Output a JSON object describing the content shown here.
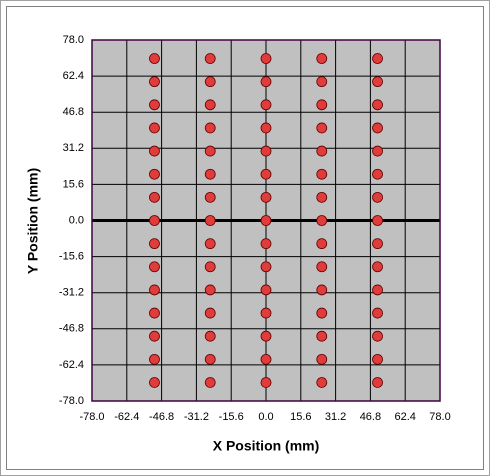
{
  "chart_data": {
    "type": "scatter",
    "xlabel": "X Position (mm)",
    "ylabel": "Y Position (mm)",
    "color": "#e03c3c",
    "x": [
      -50,
      -50,
      -50,
      -50,
      -50,
      -50,
      -50,
      -50,
      -50,
      -50,
      -50,
      -50,
      -50,
      -50,
      -50,
      -25,
      -25,
      -25,
      -25,
      -25,
      -25,
      -25,
      -25,
      -25,
      -25,
      -25,
      -25,
      -25,
      -25,
      -25,
      0,
      0,
      0,
      0,
      0,
      0,
      0,
      0,
      0,
      0,
      0,
      0,
      0,
      0,
      0,
      25,
      25,
      25,
      25,
      25,
      25,
      25,
      25,
      25,
      25,
      25,
      25,
      25,
      25,
      25,
      50,
      50,
      50,
      50,
      50,
      50,
      50,
      50,
      50,
      50,
      50,
      50,
      50,
      50,
      50
    ],
    "y": [
      70,
      60,
      50,
      40,
      30,
      20,
      10,
      0,
      -10,
      -20,
      -30,
      -40,
      -50,
      -60,
      -70,
      70,
      60,
      50,
      40,
      30,
      20,
      10,
      0,
      -10,
      -20,
      -30,
      -40,
      -50,
      -60,
      -70,
      70,
      60,
      50,
      40,
      30,
      20,
      10,
      0,
      -10,
      -20,
      -30,
      -40,
      -50,
      -60,
      -70,
      70,
      60,
      50,
      40,
      30,
      20,
      10,
      0,
      -10,
      -20,
      -30,
      -40,
      -50,
      -60,
      -70,
      70,
      60,
      50,
      40,
      30,
      20,
      10,
      0,
      -10,
      -20,
      -30,
      -40,
      -50,
      -60,
      -70
    ],
    "xlim": [
      -78,
      78
    ],
    "ylim": [
      -78,
      78
    ],
    "xticks": [
      {
        "value": -78,
        "label": "-78.0"
      },
      {
        "value": -62.4,
        "label": "-62.4"
      },
      {
        "value": -46.8,
        "label": "-46.8"
      },
      {
        "value": -31.2,
        "label": "-31.2"
      },
      {
        "value": -15.6,
        "label": "-15.6"
      },
      {
        "value": 0,
        "label": "0.0"
      },
      {
        "value": 15.6,
        "label": "15.6"
      },
      {
        "value": 31.2,
        "label": "31.2"
      },
      {
        "value": 46.8,
        "label": "46.8"
      },
      {
        "value": 62.4,
        "label": "62.4"
      },
      {
        "value": 78,
        "label": "78.0"
      }
    ],
    "yticks": [
      {
        "value": -78,
        "label": "-78.0"
      },
      {
        "value": -62.4,
        "label": "-62.4"
      },
      {
        "value": -46.8,
        "label": "-46.8"
      },
      {
        "value": -31.2,
        "label": "-31.2"
      },
      {
        "value": -15.6,
        "label": "-15.6"
      },
      {
        "value": 0,
        "label": "0.0"
      },
      {
        "value": 15.6,
        "label": "15.6"
      },
      {
        "value": 31.2,
        "label": "31.2"
      },
      {
        "value": 46.8,
        "label": "46.8"
      },
      {
        "value": 62.4,
        "label": "62.4"
      },
      {
        "value": 78,
        "label": "78.0"
      }
    ],
    "grid": true
  }
}
